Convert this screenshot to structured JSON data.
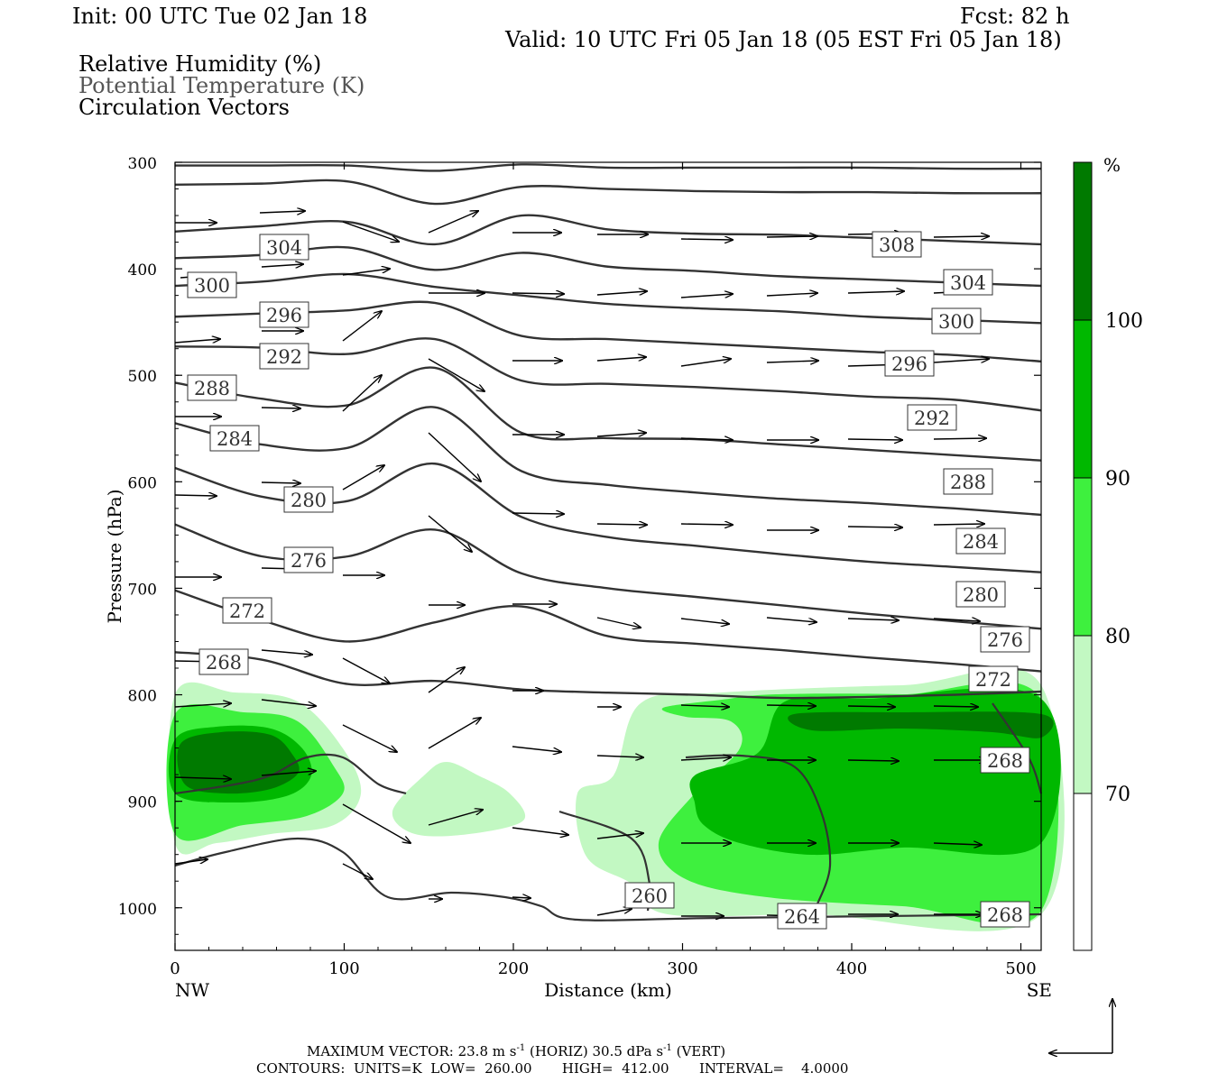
{
  "header": {
    "init": "Init: 00 UTC Tue 02 Jan 18",
    "fcst": "Fcst:   82 h",
    "valid": "Valid: 10 UTC Fri 05 Jan 18 (05 EST Fri 05 Jan 18)",
    "fields": [
      "Relative Humidity (%)",
      "Potential Temperature (K)",
      "Circulation Vectors"
    ]
  },
  "colors": {
    "rh_70_80": "#c2f8c2",
    "rh_80_90": "#3ef03e",
    "rh_90_100": "#00b800",
    "rh_100": "#007a00",
    "contour": "#333333"
  },
  "chart_data": {
    "type": "cross-section",
    "xlabel": "Distance (km)",
    "ylabel": "Pressure (hPa)",
    "xlim": [
      0,
      512
    ],
    "ylim": [
      1040,
      300
    ],
    "x_ticks": [
      0,
      100,
      200,
      300,
      400,
      500
    ],
    "y_ticks": [
      300,
      400,
      500,
      600,
      700,
      800,
      900,
      1000
    ],
    "left_end_label": "NW",
    "right_end_label": "SE",
    "colorbar": {
      "unit": "%",
      "levels": [
        70,
        80,
        90,
        100
      ]
    },
    "theta_lines": [
      {
        "theta": 308,
        "p": [
          303,
          303,
          303,
          308,
          302,
          305,
          305,
          305,
          305,
          306,
          306
        ]
      },
      {
        "theta": 304,
        "p": [
          321,
          320,
          318,
          339,
          323,
          325,
          327,
          328,
          328,
          329,
          329
        ]
      },
      {
        "theta": 300,
        "p": [
          365,
          360,
          356,
          377,
          350,
          363,
          367,
          368,
          371,
          374,
          377
        ]
      },
      {
        "theta": 296,
        "p": [
          390,
          387,
          380,
          401,
          385,
          398,
          402,
          407,
          410,
          413,
          416
        ]
      },
      {
        "theta": 292,
        "p": [
          416,
          412,
          405,
          417,
          425,
          433,
          437,
          440,
          445,
          448,
          451
        ]
      },
      {
        "theta": 288,
        "p": [
          445,
          442,
          439,
          432,
          463,
          466,
          470,
          474,
          478,
          481,
          487
        ]
      },
      {
        "theta": 284,
        "p": [
          473,
          474,
          480,
          466,
          505,
          508,
          511,
          515,
          520,
          523,
          533
        ]
      },
      {
        "theta": 280,
        "p": [
          507,
          522,
          528,
          493,
          554,
          559,
          560,
          565,
          570,
          575,
          580
        ]
      },
      {
        "theta": 276,
        "p": [
          545,
          565,
          568,
          530,
          590,
          603,
          610,
          616,
          620,
          625,
          631
        ]
      },
      {
        "theta": 272,
        "p": [
          587,
          614,
          618,
          583,
          633,
          652,
          660,
          668,
          675,
          680,
          685
        ]
      },
      {
        "theta": 268,
        "p": [
          640,
          670,
          670,
          645,
          686,
          700,
          708,
          716,
          724,
          731,
          738
        ]
      },
      {
        "theta": 264,
        "p": [
          702,
          730,
          750,
          732,
          717,
          745,
          752,
          758,
          765,
          771,
          778
        ]
      },
      {
        "theta": 260,
        "p": [
          760,
          767,
          790,
          787,
          795,
          798,
          800,
          803,
          802,
          800,
          797
        ]
      }
    ],
    "max_vector": {
      "horiz": "23.8",
      "vert": "30.5"
    },
    "contours": {
      "units": "K",
      "low": "260.00",
      "high": "412.00",
      "interval": "4.0000"
    }
  },
  "footer": {
    "maxvec_prefix": "MAXIMUM VECTOR:  23.8 m s",
    "maxvec_mid": " (HORIZ)        30.5 dPa s",
    "maxvec_suffix": " (VERT)",
    "exp": "-1",
    "contours_line": "CONTOURS:  UNITS=K  LOW=  260.00       HIGH=  412.00       INTERVAL=    4.0000"
  }
}
